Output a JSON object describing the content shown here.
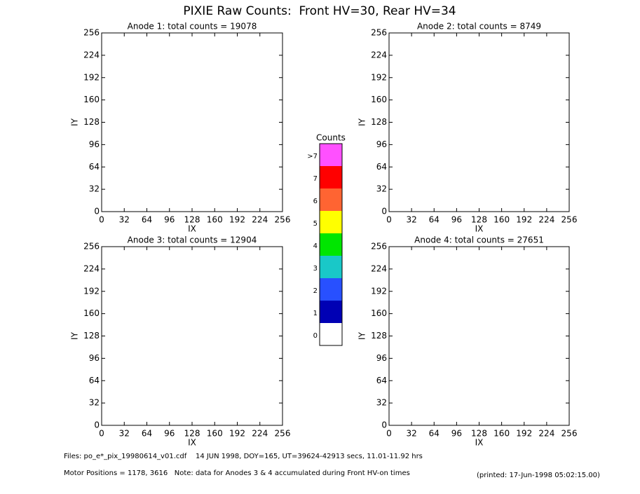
{
  "title": "PIXIE Raw Counts:  Front HV=30, Rear HV=34",
  "chart_data": [
    {
      "type": "heatmap",
      "title": "Anode 1: total counts = 19078",
      "x_label": "IX",
      "y_label": "IY",
      "xlim": [
        0,
        256
      ],
      "ylim": [
        0,
        256
      ],
      "xticks": [
        0,
        32,
        64,
        96,
        128,
        160,
        192,
        224,
        256
      ],
      "yticks": [
        0,
        32,
        64,
        96,
        128,
        160,
        192,
        224,
        256
      ]
    },
    {
      "type": "heatmap",
      "title": "Anode 2: total counts = 8749",
      "x_label": "IX",
      "y_label": "IY",
      "xlim": [
        0,
        256
      ],
      "ylim": [
        0,
        256
      ],
      "xticks": [
        0,
        32,
        64,
        96,
        128,
        160,
        192,
        224,
        256
      ],
      "yticks": [
        0,
        32,
        64,
        96,
        128,
        160,
        192,
        224,
        256
      ]
    },
    {
      "type": "heatmap",
      "title": "Anode 3: total counts = 12904",
      "x_label": "IX",
      "y_label": "IY",
      "xlim": [
        0,
        256
      ],
      "ylim": [
        0,
        256
      ],
      "xticks": [
        0,
        32,
        64,
        96,
        128,
        160,
        192,
        224,
        256
      ],
      "yticks": [
        0,
        32,
        64,
        96,
        128,
        160,
        192,
        224,
        256
      ]
    },
    {
      "type": "heatmap",
      "title": "Anode 4: total counts = 27651",
      "x_label": "IX",
      "y_label": "IY",
      "xlim": [
        0,
        256
      ],
      "ylim": [
        0,
        256
      ],
      "xticks": [
        0,
        32,
        64,
        96,
        128,
        160,
        192,
        224,
        256
      ],
      "yticks": [
        0,
        32,
        64,
        96,
        128,
        160,
        192,
        224,
        256
      ]
    }
  ],
  "colorbar": {
    "title": "Counts",
    "labels": [
      "0",
      "1",
      "2",
      "3",
      "4",
      "5",
      "6",
      "7",
      ">7"
    ],
    "colors": [
      "#ffffff",
      "#0000b4",
      "#2850ff",
      "#19c8c8",
      "#00e600",
      "#ffff00",
      "#ff6432",
      "#ff0000",
      "#ff50ff"
    ]
  },
  "footer": {
    "files": "Files: po_e*_pix_19980614_v01.cdf    14 JUN 1998, DOY=165, UT=39624-42913 secs, 11.01-11.92 hrs",
    "motor": "Motor Positions = 1178, 3616   Note: data for Anodes 3 & 4 accumulated during Front HV-on times",
    "printed": "(printed: 17-Jun-1998 05:02:15.00)"
  }
}
